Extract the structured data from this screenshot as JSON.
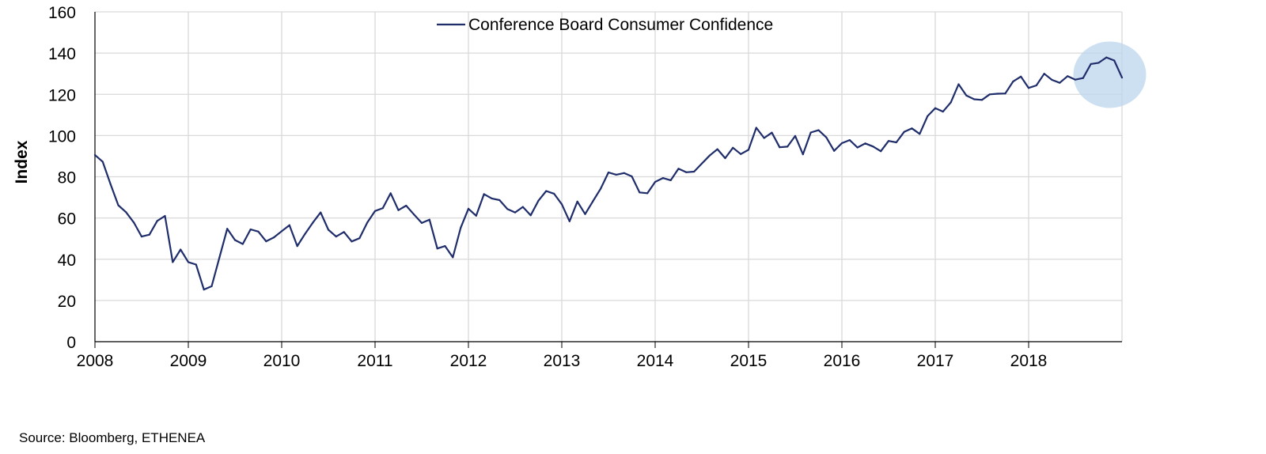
{
  "source": "Source: Bloomberg, ETHENEA",
  "chart_data": {
    "type": "line",
    "title": "",
    "xlabel": "",
    "ylabel": "Index",
    "ylim": [
      0,
      160
    ],
    "xlim": [
      "2008-01",
      "2019-01"
    ],
    "yticks": [
      "0",
      "20",
      "40",
      "60",
      "80",
      "100",
      "120",
      "140",
      "160"
    ],
    "xticks": [
      "2008",
      "2009",
      "2010",
      "2011",
      "2012",
      "2013",
      "2014",
      "2015",
      "2016",
      "2017",
      "2018"
    ],
    "grid": true,
    "legend_position": "top-center",
    "highlight": {
      "description": "shaded circle around latest readings",
      "x_from": "2018-08",
      "x_to": "2018-12"
    },
    "colors": {
      "line": "#1f2d6b",
      "grid": "#d9d9d9",
      "highlight": "#bcd6ee"
    },
    "series": [
      {
        "name": "Conference Board Consumer Confidence",
        "x_start": "2008-01",
        "frequency": "monthly",
        "values": [
          90.6,
          87.3,
          76.4,
          66.2,
          62.8,
          57.8,
          51.0,
          51.9,
          58.6,
          61.0,
          38.6,
          44.7,
          38.6,
          37.4,
          25.3,
          26.9,
          40.8,
          54.8,
          49.3,
          47.4,
          54.5,
          53.4,
          48.7,
          50.6,
          53.6,
          56.5,
          46.4,
          52.3,
          57.7,
          62.7,
          54.3,
          51.0,
          53.2,
          48.6,
          50.2,
          57.8,
          63.4,
          64.8,
          72.0,
          63.8,
          66.0,
          61.7,
          57.6,
          59.2,
          45.2,
          46.4,
          40.9,
          55.2,
          64.5,
          61.1,
          71.6,
          69.5,
          68.7,
          64.4,
          62.7,
          65.4,
          61.3,
          68.4,
          73.1,
          71.8,
          66.7,
          58.4,
          68.0,
          61.9,
          68.1,
          74.3,
          82.1,
          81.0,
          81.8,
          80.2,
          72.4,
          72.0,
          77.5,
          79.4,
          78.3,
          83.9,
          82.2,
          82.5,
          86.4,
          90.3,
          93.4,
          89.0,
          94.1,
          91.0,
          93.1,
          103.8,
          98.8,
          101.4,
          94.3,
          94.6,
          99.8,
          90.9,
          101.5,
          102.6,
          99.1,
          92.6,
          96.3,
          97.8,
          94.2,
          96.2,
          94.7,
          92.4,
          97.4,
          96.7,
          101.8,
          103.5,
          100.8,
          109.4,
          113.3,
          111.6,
          116.1,
          124.9,
          119.4,
          117.6,
          117.3,
          120.0,
          120.3,
          120.4,
          126.2,
          128.6,
          123.1,
          124.3,
          130.0,
          127.0,
          125.6,
          128.8,
          127.1,
          127.9,
          134.7,
          135.3,
          137.9,
          136.4,
          128.1
        ]
      }
    ]
  }
}
